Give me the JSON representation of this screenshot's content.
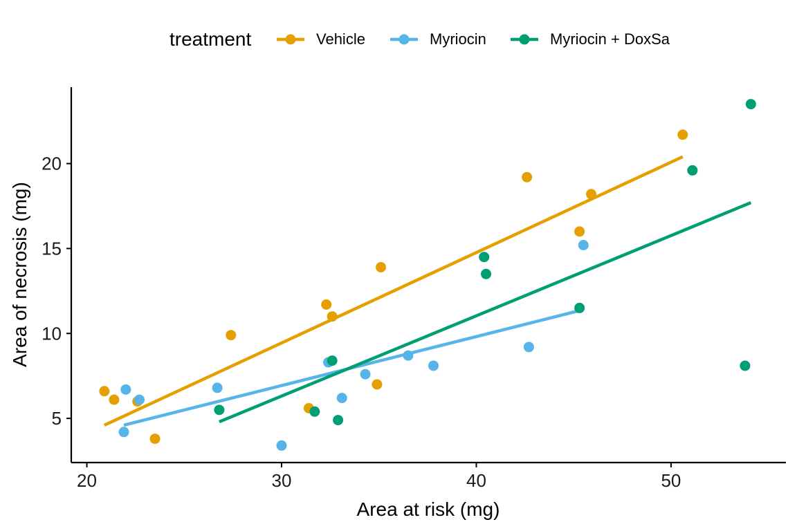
{
  "chart_data": {
    "type": "scatter",
    "xlabel": "Area at risk (mg)",
    "ylabel": "Area of necrosis (mg)",
    "xlim": [
      19.2,
      55.9
    ],
    "ylim": [
      2.4,
      24.5
    ],
    "xticks": [
      20,
      30,
      40,
      50
    ],
    "yticks": [
      5,
      10,
      15,
      20
    ],
    "grid": false,
    "legend": {
      "title": "treatment",
      "position": "top"
    },
    "series": [
      {
        "name": "Vehicle",
        "color": "#E69F00",
        "points": [
          [
            20.9,
            6.6
          ],
          [
            21.4,
            6.1
          ],
          [
            22.6,
            6.0
          ],
          [
            23.5,
            3.8
          ],
          [
            27.4,
            9.9
          ],
          [
            31.4,
            5.6
          ],
          [
            32.3,
            11.7
          ],
          [
            32.6,
            11.0
          ],
          [
            34.9,
            7.0
          ],
          [
            35.1,
            13.9
          ],
          [
            42.6,
            19.2
          ],
          [
            45.3,
            16.0
          ],
          [
            45.9,
            18.2
          ],
          [
            50.6,
            21.7
          ]
        ],
        "fit": [
          [
            20.9,
            4.6
          ],
          [
            50.6,
            20.4
          ]
        ]
      },
      {
        "name": "Myriocin",
        "color": "#56B4E9",
        "points": [
          [
            21.9,
            4.2
          ],
          [
            22.0,
            6.7
          ],
          [
            22.7,
            6.1
          ],
          [
            26.7,
            6.8
          ],
          [
            30.0,
            3.4
          ],
          [
            32.4,
            8.3
          ],
          [
            33.1,
            6.2
          ],
          [
            34.3,
            7.6
          ],
          [
            36.5,
            8.7
          ],
          [
            37.8,
            8.1
          ],
          [
            42.7,
            9.2
          ],
          [
            45.5,
            15.2
          ]
        ],
        "fit": [
          [
            21.9,
            4.6
          ],
          [
            45.5,
            11.4
          ]
        ]
      },
      {
        "name": "Myriocin + DoxSa",
        "color": "#009E73",
        "points": [
          [
            26.8,
            5.5
          ],
          [
            31.7,
            5.4
          ],
          [
            32.6,
            8.4
          ],
          [
            32.9,
            4.9
          ],
          [
            40.4,
            14.5
          ],
          [
            40.5,
            13.5
          ],
          [
            45.3,
            11.5
          ],
          [
            51.1,
            19.6
          ],
          [
            53.8,
            8.1
          ],
          [
            54.1,
            23.5
          ]
        ],
        "fit": [
          [
            26.8,
            4.8
          ],
          [
            54.1,
            17.7
          ]
        ]
      }
    ]
  }
}
